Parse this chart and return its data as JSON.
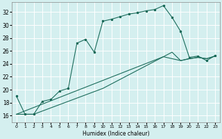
{
  "xlabel": "Humidex (Indice chaleur)",
  "bg_color": "#d4efef",
  "grid_color": "#b8e0e0",
  "line_color": "#1a6b5a",
  "xlim": [
    -0.5,
    23.5
  ],
  "ylim": [
    15.0,
    33.5
  ],
  "yticks": [
    16,
    18,
    20,
    22,
    24,
    26,
    28,
    30,
    32
  ],
  "xticks": [
    0,
    1,
    2,
    3,
    4,
    5,
    6,
    7,
    8,
    9,
    10,
    11,
    12,
    13,
    14,
    15,
    16,
    17,
    18,
    19,
    20,
    21,
    22,
    23
  ],
  "series1_x": [
    0,
    1,
    2,
    3,
    4,
    5,
    6,
    7,
    8,
    9,
    10,
    11,
    12,
    13,
    14,
    15,
    16,
    17,
    18,
    19,
    20,
    21,
    22,
    23
  ],
  "series1_y": [
    19.0,
    16.2,
    16.2,
    18.2,
    18.5,
    19.8,
    20.2,
    27.2,
    27.8,
    25.8,
    30.6,
    30.9,
    31.3,
    31.7,
    31.9,
    32.2,
    32.4,
    33.0,
    31.2,
    29.0,
    25.0,
    25.2,
    24.5,
    25.3
  ],
  "series2_x": [
    0,
    1,
    2,
    3,
    4,
    5,
    6,
    7,
    8,
    9,
    10,
    11,
    12,
    13,
    14,
    15,
    16,
    17,
    18,
    19,
    20,
    21,
    22,
    23
  ],
  "series2_y": [
    16.2,
    16.2,
    16.2,
    16.7,
    17.2,
    17.7,
    18.2,
    18.7,
    19.2,
    19.7,
    20.2,
    20.9,
    21.6,
    22.3,
    23.0,
    23.7,
    24.4,
    25.1,
    25.8,
    24.5,
    24.8,
    25.0,
    24.8,
    25.2
  ],
  "series3_x": [
    0,
    17,
    19,
    20,
    21,
    22,
    23
  ],
  "series3_y": [
    16.2,
    25.1,
    24.5,
    24.8,
    25.0,
    24.8,
    25.2
  ]
}
